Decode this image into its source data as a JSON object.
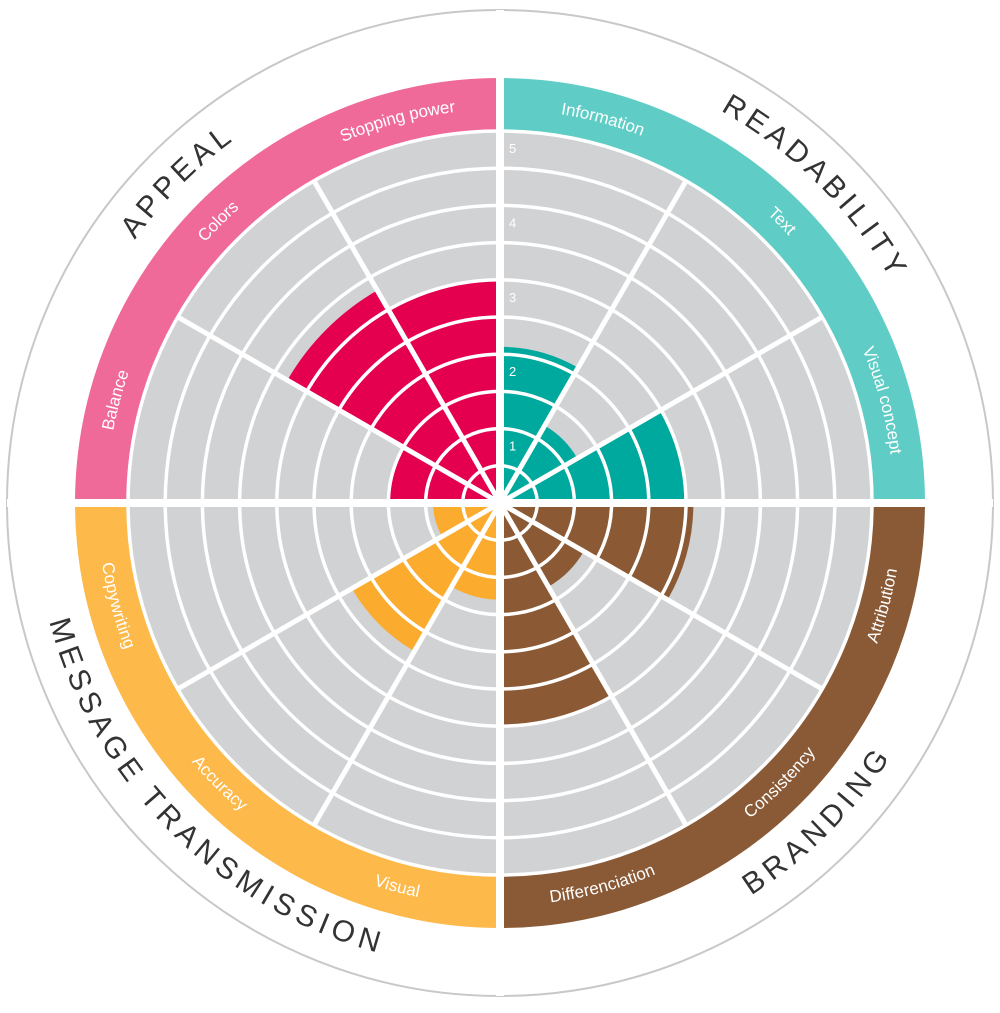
{
  "chart_data": {
    "type": "polar-bar",
    "rlim": [
      0,
      5
    ],
    "ticks": [
      "1",
      "2",
      "3",
      "4",
      "5"
    ],
    "grid": true,
    "categories": [
      {
        "name": "READABILITY",
        "color": "#5fcdc5",
        "bar_color": "#00a99d",
        "criteria": [
          {
            "label": "Information",
            "value": 2.1
          },
          {
            "label": "Text",
            "value": 1.2
          },
          {
            "label": "Visual concept",
            "value": 2.5
          }
        ]
      },
      {
        "name": "BRANDING",
        "color": "#8a5a37",
        "bar_color": "#8b5a35",
        "criteria": [
          {
            "label": "Attribution",
            "value": 2.6
          },
          {
            "label": "Consistency",
            "value": 1.3
          },
          {
            "label": "Differenciation",
            "value": 3.0
          }
        ]
      },
      {
        "name": "MESSAGE TRANSMISSION",
        "color": "#fdb94a",
        "bar_color": "#fbab2e",
        "criteria": [
          {
            "label": "Visual",
            "value": 1.3
          },
          {
            "label": "Accuracy",
            "value": 2.3
          },
          {
            "label": "Copywriting",
            "value": 0.9
          }
        ]
      },
      {
        "name": "APPEAL",
        "color": "#f06a99",
        "bar_color": "#e5004f",
        "criteria": [
          {
            "label": "Balance",
            "value": 1.5
          },
          {
            "label": "Colors",
            "value": 3.3
          },
          {
            "label": "Stopping power",
            "value": 3.0
          }
        ]
      }
    ]
  }
}
